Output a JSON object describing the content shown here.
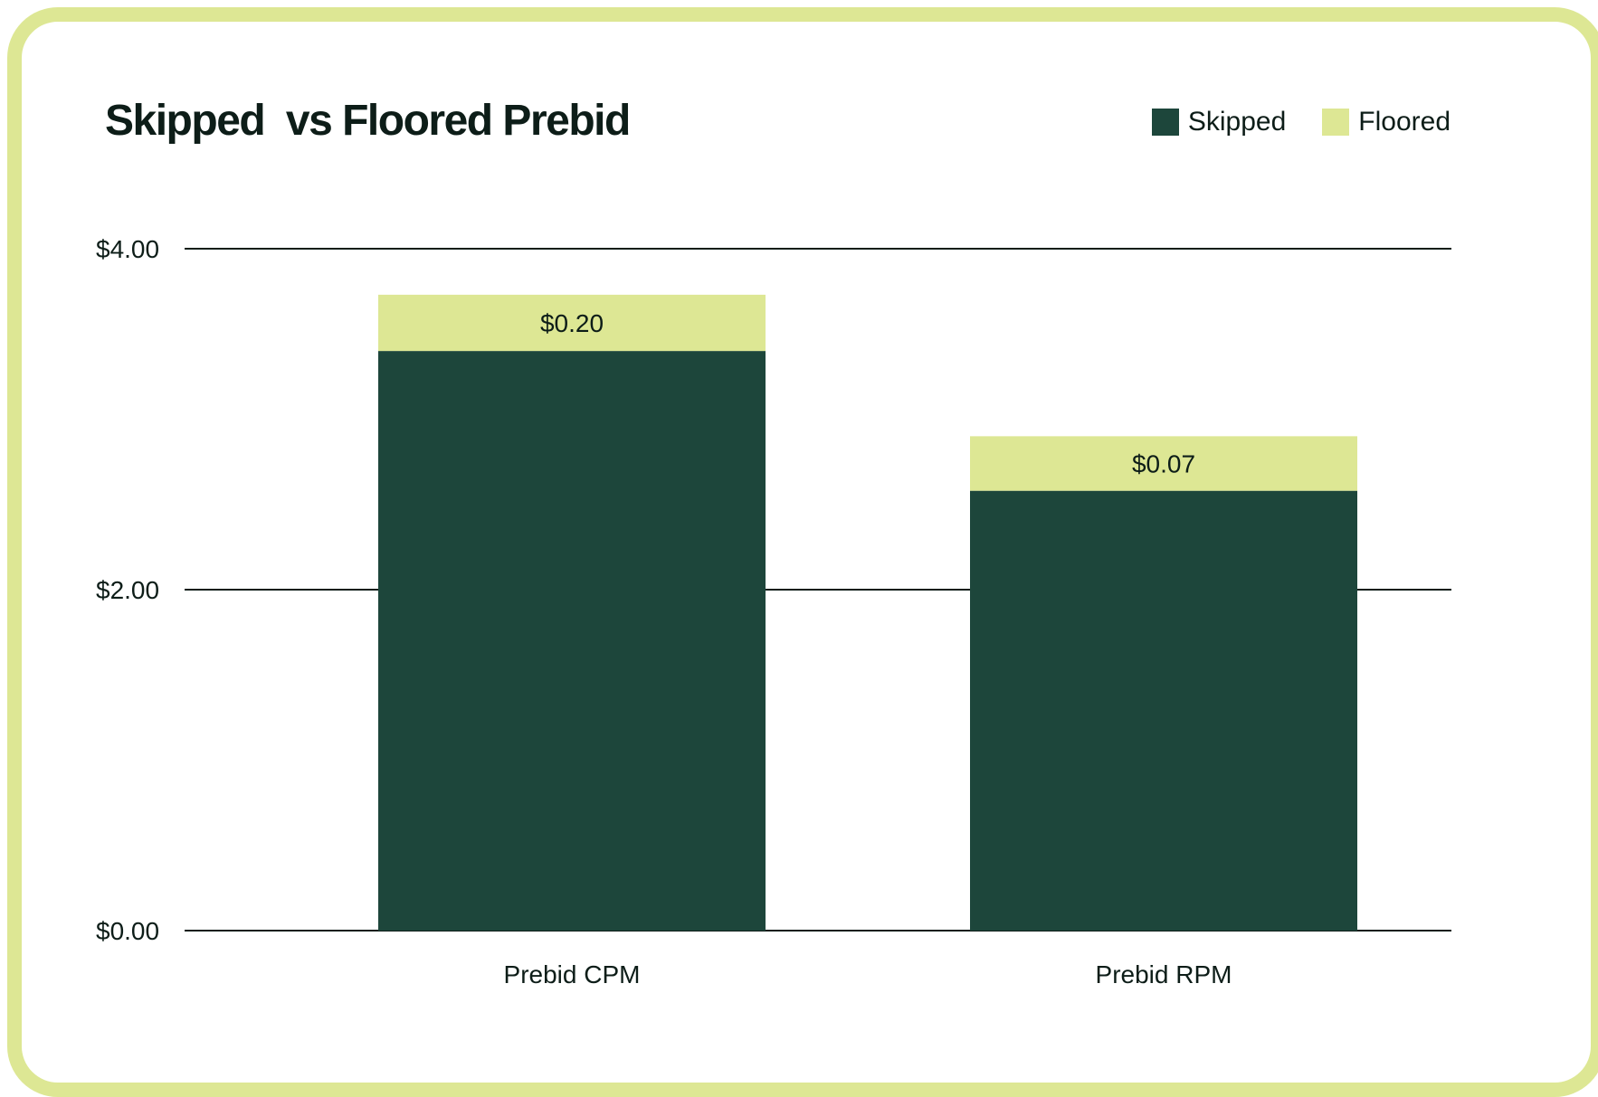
{
  "chart_data": {
    "type": "bar",
    "stacked": true,
    "title": "Skipped  vs Floored Prebid",
    "categories": [
      "Prebid CPM",
      "Prebid RPM"
    ],
    "series": [
      {
        "name": "Skipped",
        "values": [
          3.4,
          2.58
        ],
        "color": "#1d463b"
      },
      {
        "name": "Floored",
        "values": [
          0.33,
          0.32
        ],
        "color": "#dde794"
      }
    ],
    "data_labels": [
      "$0.20",
      "$0.07"
    ],
    "y_ticks": [
      {
        "value": 0,
        "label": "$0.00"
      },
      {
        "value": 2,
        "label": "$2.00"
      },
      {
        "value": 4,
        "label": "$4.00"
      }
    ],
    "ylim": [
      0,
      4
    ],
    "grid": true,
    "legend_position": "top-right",
    "xlabel": "",
    "ylabel": ""
  }
}
